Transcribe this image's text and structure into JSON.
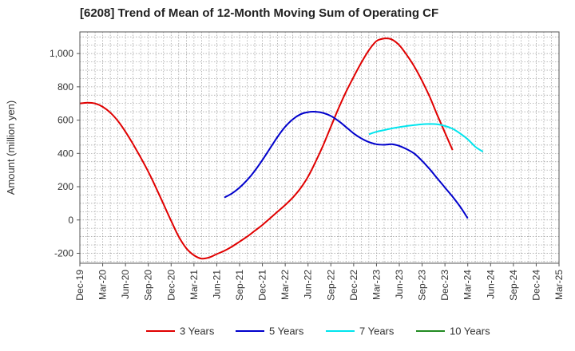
{
  "chart_data": {
    "type": "line",
    "title": "[6208]  Trend of Mean of 12-Month Moving Sum of Operating CF",
    "xlabel": "",
    "ylabel": "Amount (million yen)",
    "ylim": [
      -260,
      1130
    ],
    "yticks": [
      -200,
      0,
      200,
      400,
      600,
      800,
      1000
    ],
    "ytick_labels": [
      "-200",
      "0",
      "200",
      "400",
      "600",
      "800",
      "1,000"
    ],
    "x_months": [
      "Dec-19",
      "Mar-20",
      "Jun-20",
      "Sep-20",
      "Dec-20",
      "Mar-21",
      "Jun-21",
      "Sep-21",
      "Dec-21",
      "Mar-22",
      "Jun-22",
      "Sep-22",
      "Dec-22",
      "Mar-23",
      "Jun-23",
      "Sep-23",
      "Dec-23",
      "Mar-24",
      "Jun-24",
      "Sep-24",
      "Dec-24",
      "Mar-25"
    ],
    "grid": true,
    "legend_position": "bottom",
    "series": [
      {
        "name": "3 Years",
        "color": "#e00000",
        "points": [
          [
            0,
            700
          ],
          [
            1,
            705
          ],
          [
            2,
            700
          ],
          [
            3,
            680
          ],
          [
            4,
            645
          ],
          [
            5,
            595
          ],
          [
            6,
            530
          ],
          [
            7,
            455
          ],
          [
            8,
            375
          ],
          [
            9,
            290
          ],
          [
            10,
            195
          ],
          [
            11,
            95
          ],
          [
            12,
            -5
          ],
          [
            13,
            -100
          ],
          [
            14,
            -170
          ],
          [
            15,
            -212
          ],
          [
            16,
            -232
          ],
          [
            17,
            -225
          ],
          [
            18,
            -205
          ],
          [
            19,
            -185
          ],
          [
            20,
            -160
          ],
          [
            21,
            -130
          ],
          [
            22,
            -100
          ],
          [
            23,
            -65
          ],
          [
            24,
            -30
          ],
          [
            25,
            10
          ],
          [
            26,
            50
          ],
          [
            27,
            90
          ],
          [
            28,
            135
          ],
          [
            29,
            190
          ],
          [
            30,
            260
          ],
          [
            31,
            350
          ],
          [
            32,
            450
          ],
          [
            33,
            560
          ],
          [
            34,
            670
          ],
          [
            35,
            770
          ],
          [
            36,
            860
          ],
          [
            37,
            945
          ],
          [
            38,
            1020
          ],
          [
            39,
            1075
          ],
          [
            40,
            1090
          ],
          [
            41,
            1085
          ],
          [
            42,
            1050
          ],
          [
            43,
            990
          ],
          [
            44,
            920
          ],
          [
            45,
            835
          ],
          [
            46,
            740
          ],
          [
            47,
            630
          ],
          [
            48,
            525
          ],
          [
            49,
            420
          ]
        ]
      },
      {
        "name": "5 Years",
        "color": "#0000cc",
        "points": [
          [
            19,
            135
          ],
          [
            20,
            160
          ],
          [
            21,
            195
          ],
          [
            22,
            240
          ],
          [
            23,
            295
          ],
          [
            24,
            360
          ],
          [
            25,
            430
          ],
          [
            26,
            500
          ],
          [
            27,
            560
          ],
          [
            28,
            605
          ],
          [
            29,
            635
          ],
          [
            30,
            648
          ],
          [
            31,
            650
          ],
          [
            32,
            643
          ],
          [
            33,
            625
          ],
          [
            34,
            595
          ],
          [
            35,
            558
          ],
          [
            36,
            520
          ],
          [
            37,
            490
          ],
          [
            38,
            468
          ],
          [
            39,
            455
          ],
          [
            40,
            452
          ],
          [
            41,
            455
          ],
          [
            42,
            445
          ],
          [
            43,
            425
          ],
          [
            44,
            398
          ],
          [
            45,
            355
          ],
          [
            46,
            305
          ],
          [
            47,
            250
          ],
          [
            48,
            195
          ],
          [
            49,
            140
          ],
          [
            50,
            80
          ],
          [
            51,
            10
          ]
        ]
      },
      {
        "name": "7 Years",
        "color": "#00e5ee",
        "points": [
          [
            38,
            515
          ],
          [
            39,
            530
          ],
          [
            40,
            540
          ],
          [
            41,
            550
          ],
          [
            42,
            558
          ],
          [
            43,
            565
          ],
          [
            44,
            570
          ],
          [
            45,
            575
          ],
          [
            46,
            577
          ],
          [
            47,
            575
          ],
          [
            48,
            565
          ],
          [
            49,
            548
          ],
          [
            50,
            520
          ],
          [
            51,
            485
          ],
          [
            52,
            440
          ],
          [
            53,
            410
          ]
        ]
      },
      {
        "name": "10 Years",
        "color": "#228b22",
        "points": []
      }
    ]
  }
}
